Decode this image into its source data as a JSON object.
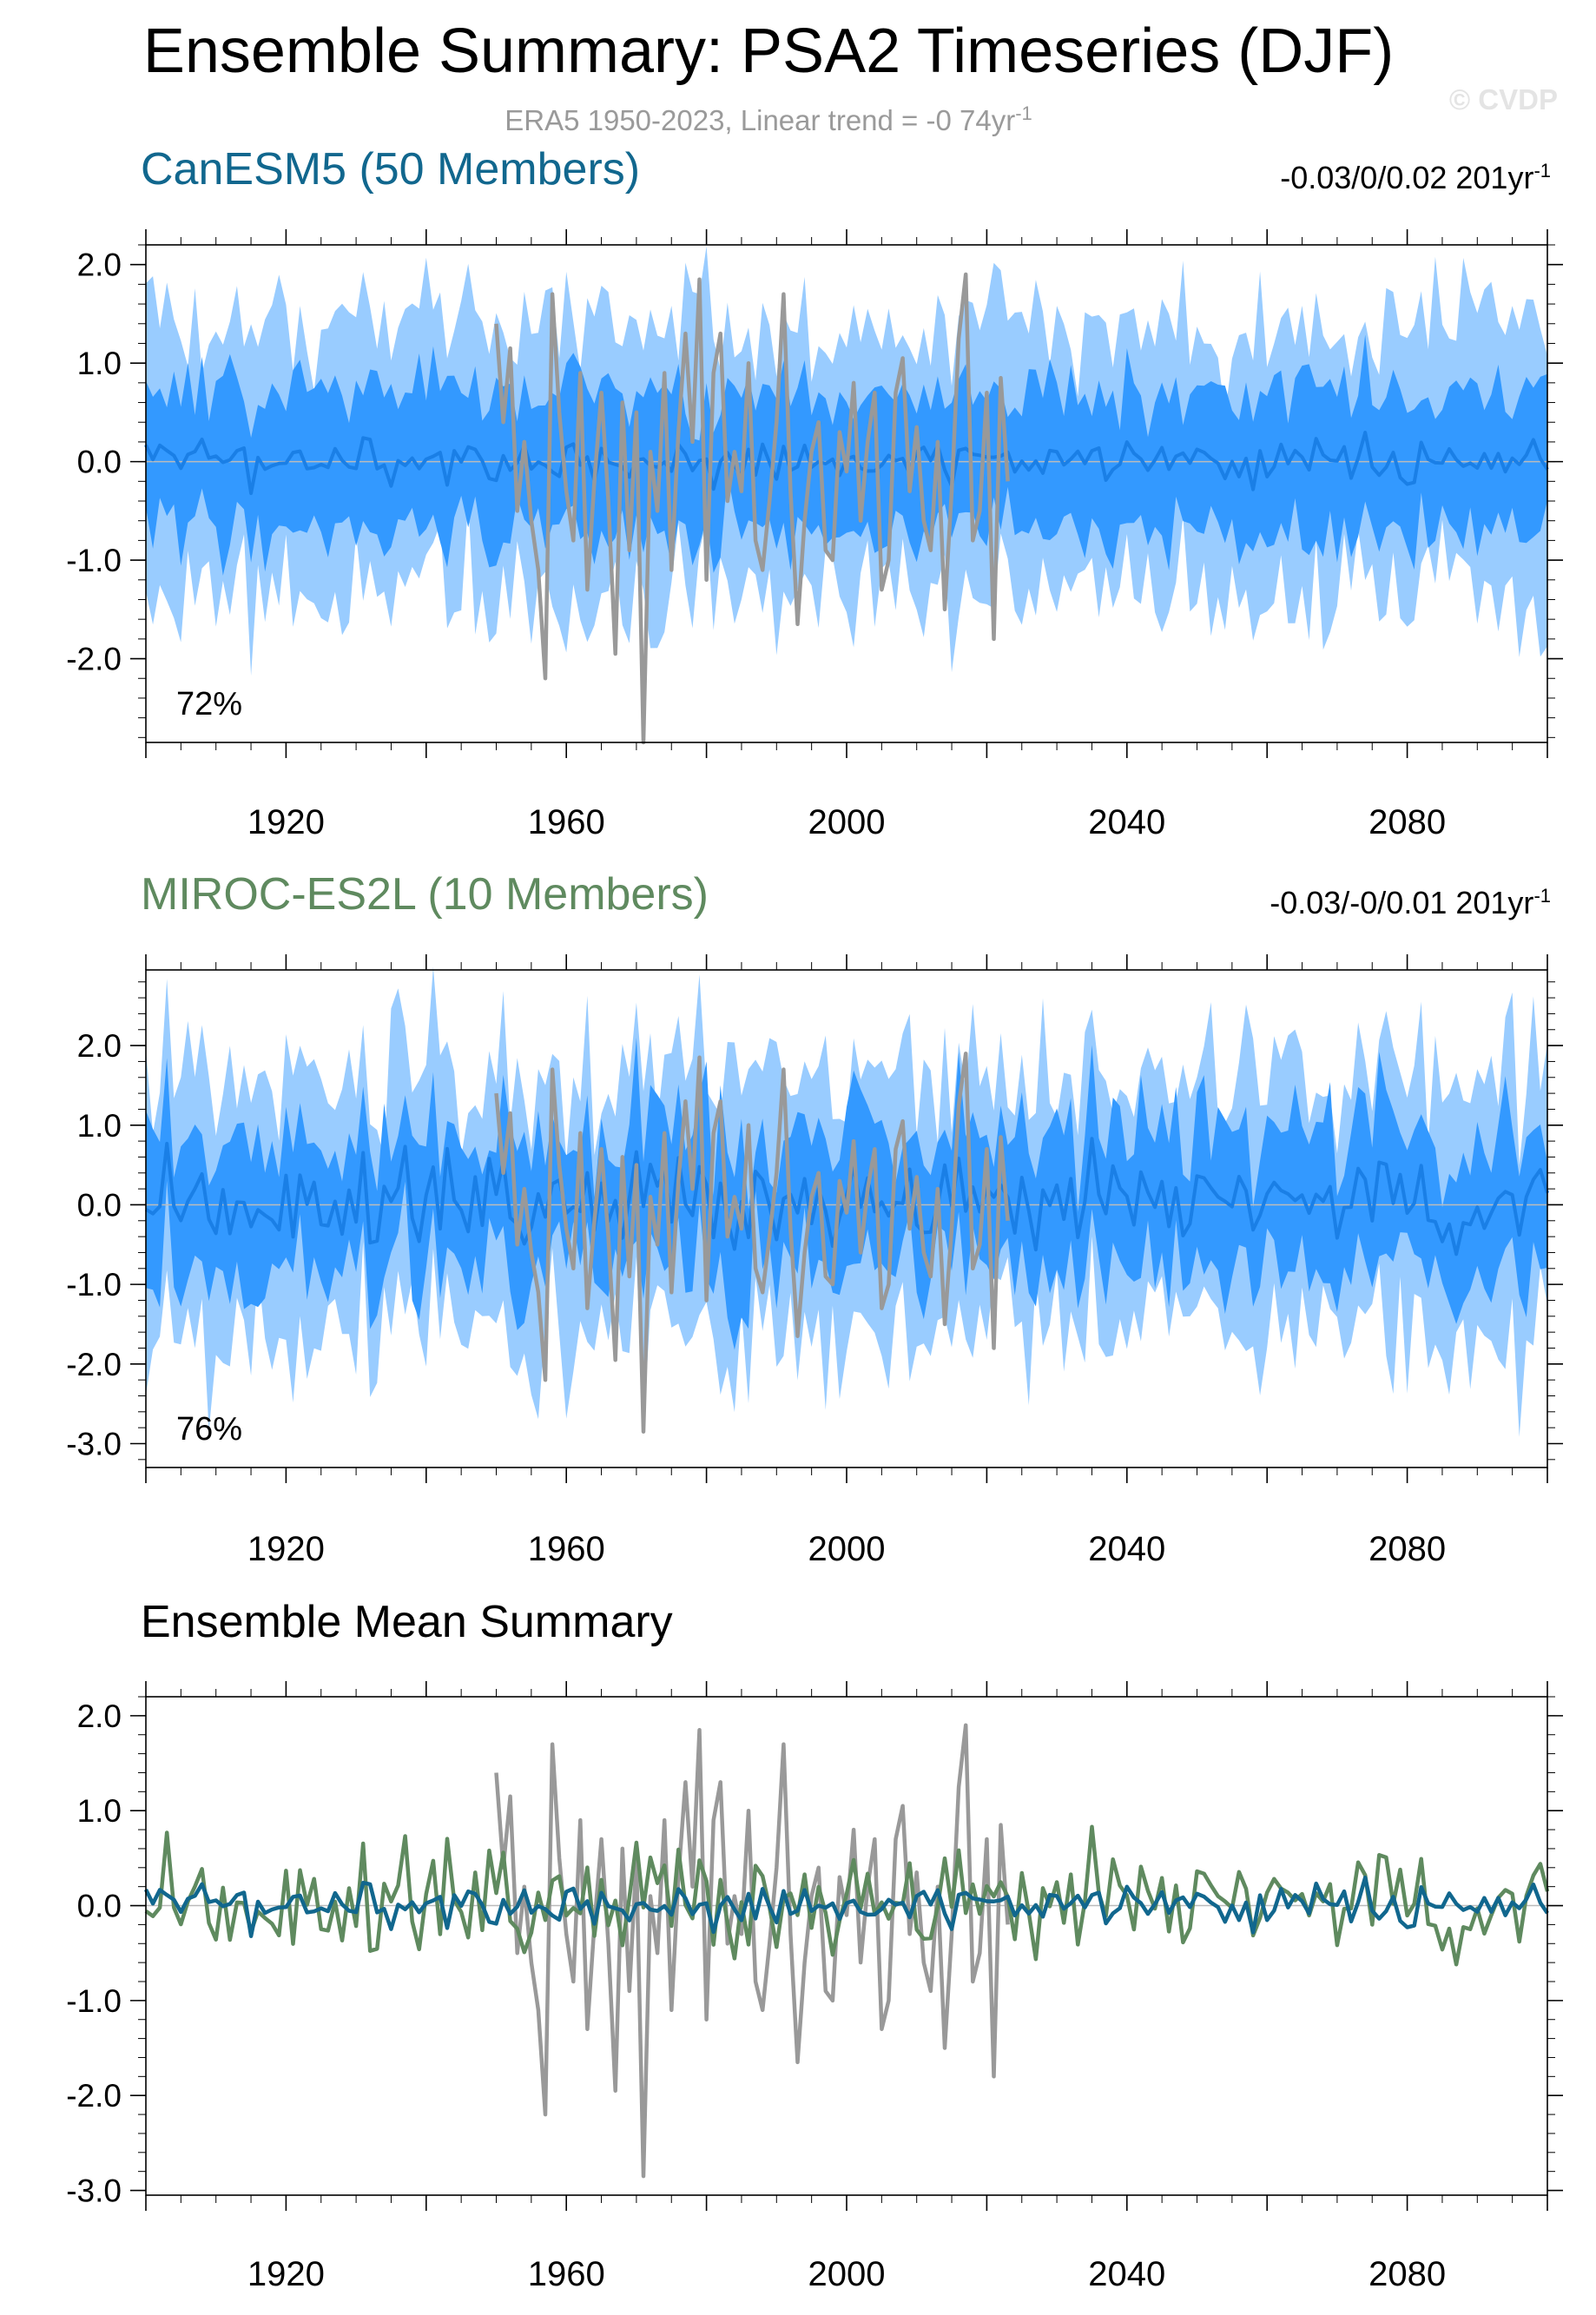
{
  "header": {
    "title": "Ensemble Summary: PSA2 Timeseries (DJF)",
    "subtitle_prefix": "ERA5 1950-2023, Linear trend = -0 74yr",
    "subtitle_exp": "-1",
    "watermark": "© CVDP"
  },
  "colors": {
    "outer_band": "#99ccff",
    "inner_band": "#3399ff",
    "ens_mean_line": "#1a7fe6",
    "obs": "#999999",
    "canesm5": "#11678e",
    "miroc": "#5f8a5f",
    "axis": "#000000",
    "zero_line": "#bbbbbb"
  },
  "chart_data": [
    {
      "type": "area",
      "title": "CanESM5 (50 Members)",
      "trend_text": "-0.03/0/0.02 201yr",
      "trend_exp": "-1",
      "percent_label": "72%",
      "xlim": [
        1900,
        2100
      ],
      "ylim": [
        -2.85,
        2.2
      ],
      "yticks": [
        -2.0,
        -1.0,
        0.0,
        1.0,
        2.0
      ],
      "ytick_labels": [
        "-2.0",
        "-1.0",
        "0.0",
        "1.0",
        "2.0"
      ],
      "xticks": [
        1920,
        1960,
        2000,
        2040,
        2080
      ],
      "ensemble": {
        "outer_spread": {
          "mean": 1.35,
          "variability": 0.3
        },
        "inner_spread": {
          "mean": 0.7,
          "variability": 0.18
        },
        "mean_amplitude": 0.12
      },
      "series": [
        {
          "name": "ensemble mean",
          "role": "ens_mean"
        },
        {
          "name": "ERA5",
          "role": "obs"
        }
      ]
    },
    {
      "type": "area",
      "title": "MIROC-ES2L (10 Members)",
      "trend_text": "-0.03/-0/0.01 201yr",
      "trend_exp": "-1",
      "percent_label": "76%",
      "xlim": [
        1900,
        2100
      ],
      "ylim": [
        -3.3,
        2.95
      ],
      "yticks": [
        -3.0,
        -2.0,
        -1.0,
        0.0,
        1.0,
        2.0
      ],
      "ytick_labels": [
        "-3.0",
        "-2.0",
        "-1.0",
        "0.0",
        "1.0",
        "2.0"
      ],
      "xticks": [
        1920,
        1960,
        2000,
        2040,
        2080
      ],
      "ensemble": {
        "outer_spread": {
          "mean": 1.6,
          "variability": 0.45
        },
        "inner_spread": {
          "mean": 0.85,
          "variability": 0.25
        },
        "mean_amplitude": 0.32
      },
      "series": [
        {
          "name": "ensemble mean",
          "role": "ens_mean"
        },
        {
          "name": "ERA5",
          "role": "obs"
        }
      ]
    },
    {
      "type": "line",
      "title": "Ensemble Mean Summary",
      "xlim": [
        1900,
        2100
      ],
      "ylim": [
        -3.05,
        2.2
      ],
      "yticks": [
        -3.0,
        -2.0,
        -1.0,
        0.0,
        1.0,
        2.0
      ],
      "ytick_labels": [
        "-3.0",
        "-2.0",
        "-1.0",
        "0.0",
        "1.0",
        "2.0"
      ],
      "xticks": [
        1920,
        1960,
        2000,
        2040,
        2080
      ],
      "series": [
        {
          "name": "ERA5",
          "role": "obs"
        },
        {
          "name": "CanESM5 (50 Members)",
          "role": "canesm5"
        },
        {
          "name": "MIROC-ES2L (10 Members)",
          "role": "miroc"
        }
      ]
    }
  ],
  "obs_era5": {
    "years": [
      1950,
      1951,
      1952,
      1953,
      1954,
      1955,
      1956,
      1957,
      1958,
      1959,
      1960,
      1961,
      1962,
      1963,
      1964,
      1965,
      1966,
      1967,
      1968,
      1969,
      1970,
      1971,
      1972,
      1973,
      1974,
      1975,
      1976,
      1977,
      1978,
      1979,
      1980,
      1981,
      1982,
      1983,
      1984,
      1985,
      1986,
      1987,
      1988,
      1989,
      1990,
      1991,
      1992,
      1993,
      1994,
      1995,
      1996,
      1997,
      1998,
      1999,
      2000,
      2001,
      2002,
      2003,
      2004,
      2005,
      2006,
      2007,
      2008,
      2009,
      2010,
      2011,
      2012,
      2013,
      2014,
      2015,
      2016,
      2017,
      2018,
      2019,
      2020,
      2021,
      2022,
      2023
    ],
    "values": [
      1.4,
      0.4,
      1.15,
      -0.5,
      0.2,
      -0.6,
      -1.1,
      -2.2,
      1.7,
      0.5,
      -0.3,
      -0.8,
      0.9,
      -1.3,
      -0.2,
      0.7,
      -0.4,
      -1.95,
      0.6,
      -0.9,
      0.5,
      -2.85,
      0.1,
      -0.5,
      0.9,
      -1.1,
      0.3,
      1.3,
      0.2,
      1.85,
      -1.2,
      0.9,
      1.3,
      -0.4,
      0.1,
      -0.3,
      1.0,
      -0.8,
      -1.1,
      -0.4,
      0.4,
      1.7,
      -0.3,
      -1.65,
      -0.6,
      0.1,
      0.4,
      -0.9,
      -1.0,
      0.3,
      -0.1,
      0.8,
      -0.6,
      0.2,
      0.7,
      -1.3,
      -1.0,
      0.7,
      1.05,
      -0.3,
      0.35,
      -0.6,
      -0.9,
      0.2,
      -1.5,
      -0.3,
      1.25,
      1.9,
      -0.8,
      -0.5,
      0.7,
      -1.8,
      0.85,
      -0.2
    ]
  }
}
